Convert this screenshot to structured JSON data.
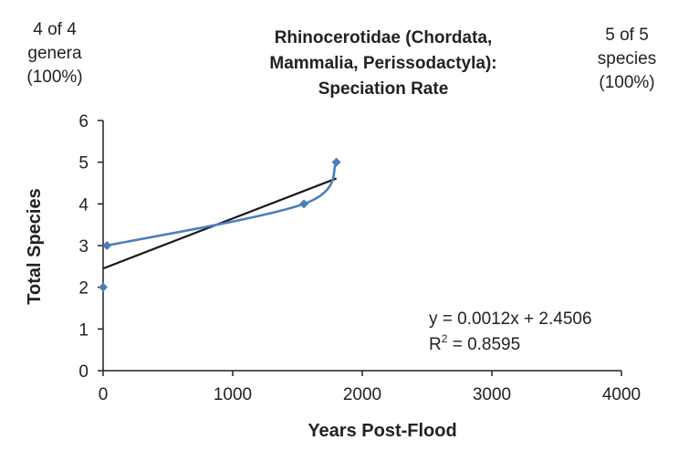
{
  "corner_left": {
    "line1": "4 of 4",
    "line2": "genera",
    "line3": "(100%)"
  },
  "corner_right": {
    "line1": "5 of 5",
    "line2": "species",
    "line3": "(100%)"
  },
  "colors": {
    "series": "#4a7ebb",
    "trendline": "#1a1a1a",
    "axis": "#222222"
  },
  "chart_data": {
    "type": "scatter",
    "title_lines": [
      "Rhinocerotidae (Chordata,",
      "Mammalia, Perissodactyla):",
      "Speciation Rate"
    ],
    "xlabel": "Years Post-Flood",
    "ylabel": "Total Species",
    "xlim": [
      0,
      4000
    ],
    "ylim": [
      0,
      6
    ],
    "x_ticks": [
      0,
      1000,
      2000,
      3000,
      4000
    ],
    "y_ticks": [
      0,
      1,
      2,
      3,
      4,
      5,
      6
    ],
    "grid": false,
    "legend": "none",
    "series": [
      {
        "points": [
          {
            "x": 0,
            "y": 2
          },
          {
            "x": 30,
            "y": 3
          },
          {
            "x": 1550,
            "y": 4
          },
          {
            "x": 1800,
            "y": 5
          }
        ],
        "smooth_line": true
      }
    ],
    "trendline": {
      "slope": 0.0012,
      "intercept": 2.4506,
      "x_range": [
        0,
        1800
      ],
      "equation": "y = 0.0012x + 2.4506",
      "r2_label": "R",
      "r2_sup": "2",
      "r2_value": " = 0.8595"
    }
  }
}
